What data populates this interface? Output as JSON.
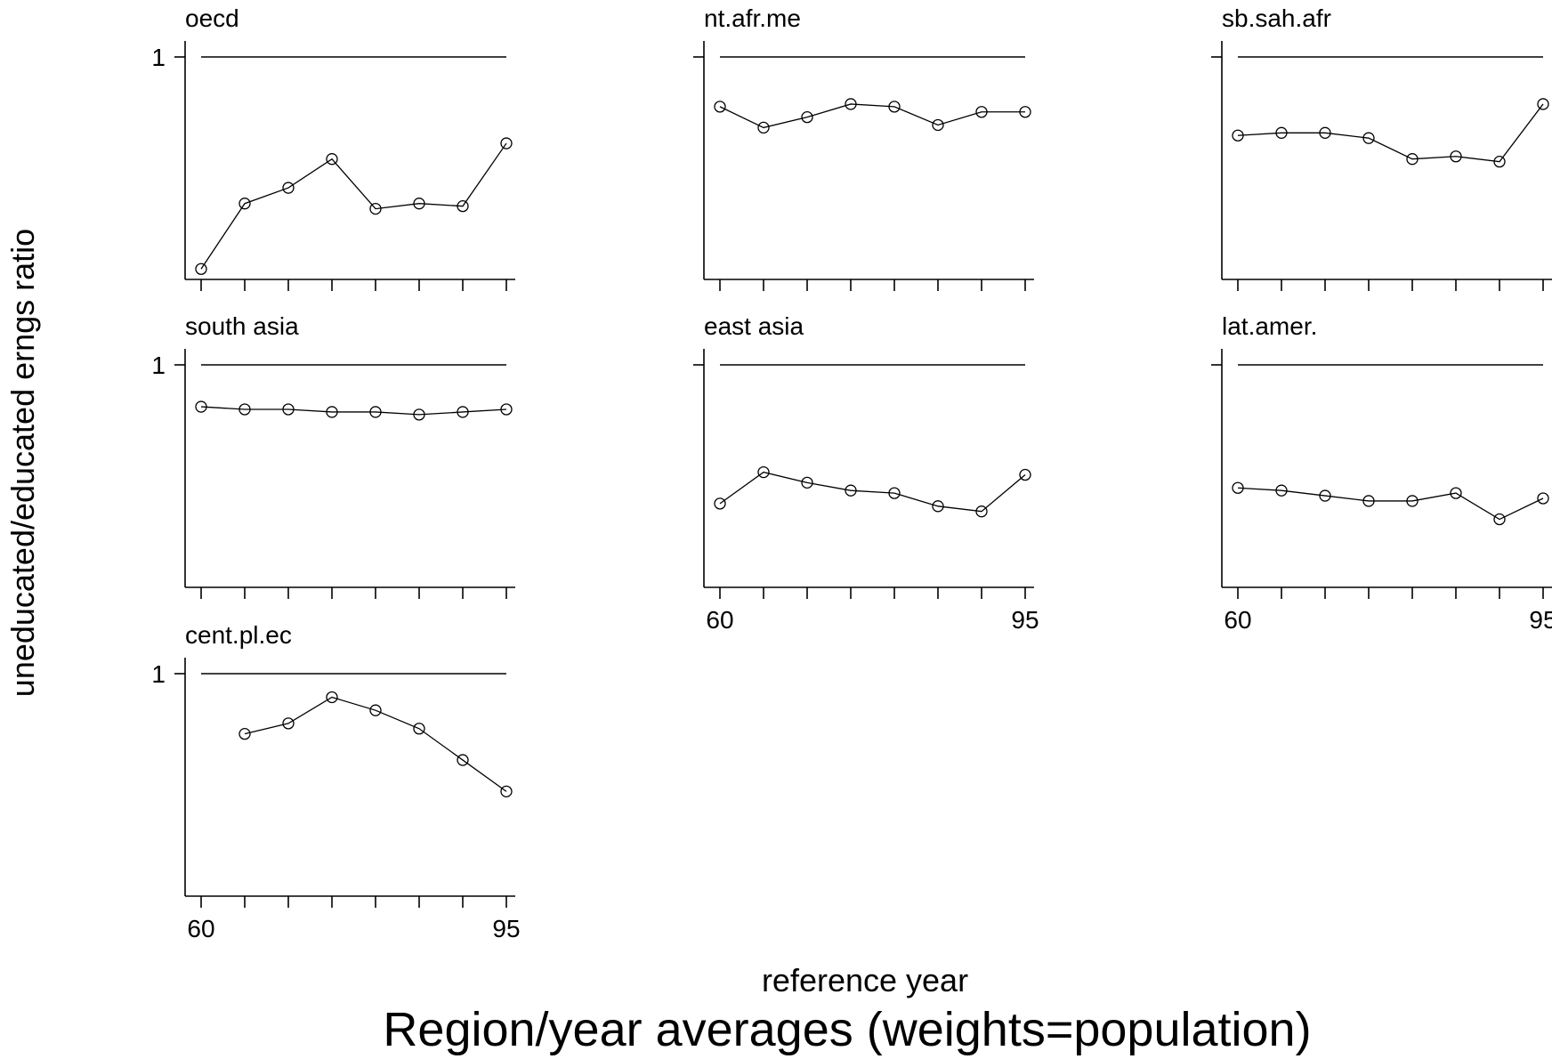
{
  "chart_data": {
    "type": "line",
    "title": "Region/year averages (weights=population)",
    "xlabel": "reference year",
    "ylabel": "uneducated/educated erngs ratio",
    "x": [
      60,
      65,
      70,
      75,
      80,
      85,
      90,
      95
    ],
    "xlim": [
      60,
      95
    ],
    "x_tick_labels": [
      "60",
      "95"
    ],
    "y_tick_label": "1",
    "reference_line_y": 1,
    "grid": false,
    "legend": false,
    "panels": [
      {
        "name": "oecd",
        "values": [
          0.19,
          0.44,
          0.5,
          0.61,
          0.42,
          0.44,
          0.43,
          0.67
        ]
      },
      {
        "name": "nt.afr.me",
        "values": [
          0.81,
          0.73,
          0.77,
          0.82,
          0.81,
          0.74,
          0.79,
          0.79
        ]
      },
      {
        "name": "sb.sah.afr",
        "values": [
          0.7,
          0.71,
          0.71,
          0.69,
          0.61,
          0.62,
          0.6,
          0.82
        ]
      },
      {
        "name": "south asia",
        "values": [
          0.84,
          0.83,
          0.83,
          0.82,
          0.82,
          0.81,
          0.82,
          0.83
        ]
      },
      {
        "name": "east asia",
        "values": [
          0.47,
          0.59,
          0.55,
          0.52,
          0.51,
          0.46,
          0.44,
          0.58
        ]
      },
      {
        "name": "lat.amer.",
        "values": [
          0.53,
          0.52,
          0.5,
          0.48,
          0.48,
          0.51,
          0.41,
          0.49
        ]
      },
      {
        "name": "cent.pl.ec",
        "values": [
          null,
          0.77,
          0.81,
          0.91,
          0.86,
          0.79,
          0.67,
          0.55
        ]
      }
    ]
  }
}
